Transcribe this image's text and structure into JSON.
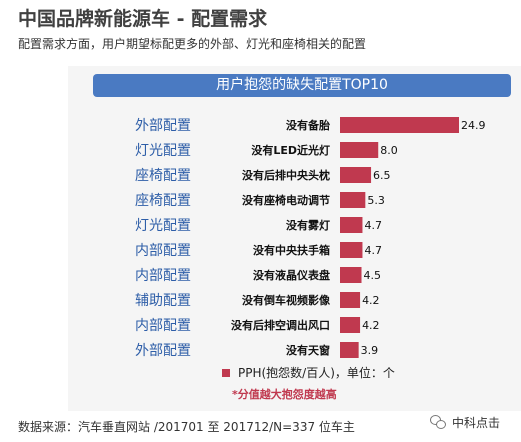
{
  "header": {
    "title": "中国品牌新能源车 - 配置需求",
    "subtitle": "配置需求方面，用户期望标配更多的外部、灯光和座椅相关的配置"
  },
  "chart_data": {
    "type": "bar",
    "orientation": "horizontal",
    "title": "用户抱怨的缺失配置TOP10",
    "categories": [
      "外部配置",
      "灯光配置",
      "座椅配置",
      "座椅配置",
      "灯光配置",
      "内部配置",
      "内部配置",
      "辅助配置",
      "内部配置",
      "外部配置"
    ],
    "items": [
      "没有备胎",
      "没有LED近光灯",
      "没有后排中央头枕",
      "没有座椅电动调节",
      "没有雾灯",
      "没有中央扶手箱",
      "没有液晶仪表盘",
      "没有倒车视频影像",
      "没有后排空调出风口",
      "没有天窗"
    ],
    "series": [
      {
        "name": "PPH(抱怨数/百人)，单位：个",
        "values": [
          24.9,
          8.0,
          6.5,
          5.3,
          4.7,
          4.7,
          4.5,
          4.2,
          4.2,
          3.9
        ],
        "value_labels": [
          "24.9",
          "8.0",
          "6.5",
          "5.3",
          "4.7",
          "4.7",
          "4.5",
          "4.2",
          "4.2",
          "3.9"
        ]
      }
    ],
    "xlim": [
      0,
      24.9
    ],
    "grid": false,
    "legend_position": "bottom",
    "bar_color": "#c0394f",
    "category_color": "#2e5ea8",
    "note": "*分值越大抱怨度越高"
  },
  "footer": {
    "source": "数据来源：汽车垂直网站 /201701 至 201712/N=337 位车主",
    "brand": "中科点击",
    "brand_icon": "wechat-icon"
  }
}
